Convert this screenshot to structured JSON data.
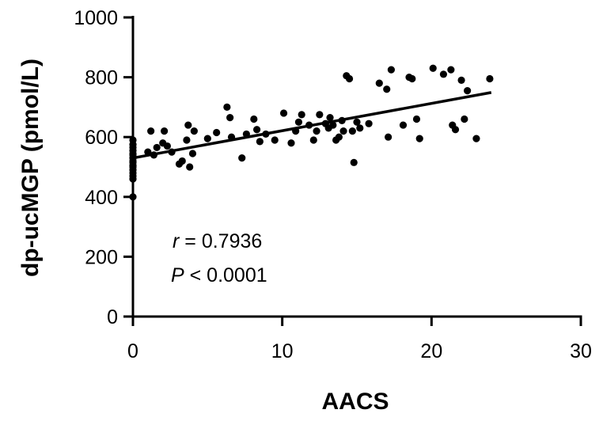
{
  "chart_data": {
    "type": "scatter",
    "xlabel": "AACS",
    "ylabel": "dp-ucMGP (pmol/L)",
    "xlim": [
      0,
      30
    ],
    "ylim": [
      0,
      1000
    ],
    "xticks": [
      "0",
      "10",
      "20",
      "30"
    ],
    "yticks": [
      "0",
      "200",
      "400",
      "600",
      "800",
      "1000"
    ],
    "grid": false,
    "annotation": {
      "r_symbol": "r",
      "r_text": " = 0.7936",
      "p_symbol": "P",
      "p_text": " < 0.0001"
    },
    "trendline": {
      "x": [
        0,
        24
      ],
      "y": [
        530,
        749
      ]
    },
    "points": [
      {
        "x": 0,
        "y": 400
      },
      {
        "x": 0,
        "y": 460
      },
      {
        "x": 0,
        "y": 470
      },
      {
        "x": 0,
        "y": 480
      },
      {
        "x": 0,
        "y": 490
      },
      {
        "x": 0,
        "y": 500
      },
      {
        "x": 0,
        "y": 505
      },
      {
        "x": 0,
        "y": 515
      },
      {
        "x": 0,
        "y": 520
      },
      {
        "x": 0,
        "y": 530
      },
      {
        "x": 0,
        "y": 540
      },
      {
        "x": 0,
        "y": 545
      },
      {
        "x": 0,
        "y": 555
      },
      {
        "x": 0,
        "y": 565
      },
      {
        "x": 0,
        "y": 575
      },
      {
        "x": 0,
        "y": 590
      },
      {
        "x": 1.0,
        "y": 550
      },
      {
        "x": 1.2,
        "y": 620
      },
      {
        "x": 1.4,
        "y": 540
      },
      {
        "x": 1.6,
        "y": 565
      },
      {
        "x": 2.0,
        "y": 580
      },
      {
        "x": 2.1,
        "y": 620
      },
      {
        "x": 2.3,
        "y": 570
      },
      {
        "x": 2.6,
        "y": 550
      },
      {
        "x": 3.1,
        "y": 510
      },
      {
        "x": 3.3,
        "y": 520
      },
      {
        "x": 3.6,
        "y": 590
      },
      {
        "x": 3.7,
        "y": 640
      },
      {
        "x": 3.8,
        "y": 500
      },
      {
        "x": 4.0,
        "y": 545
      },
      {
        "x": 4.1,
        "y": 620
      },
      {
        "x": 5.0,
        "y": 595
      },
      {
        "x": 5.6,
        "y": 615
      },
      {
        "x": 6.3,
        "y": 700
      },
      {
        "x": 6.5,
        "y": 665
      },
      {
        "x": 6.6,
        "y": 600
      },
      {
        "x": 7.3,
        "y": 530
      },
      {
        "x": 7.6,
        "y": 610
      },
      {
        "x": 8.1,
        "y": 660
      },
      {
        "x": 8.3,
        "y": 625
      },
      {
        "x": 8.5,
        "y": 585
      },
      {
        "x": 8.9,
        "y": 610
      },
      {
        "x": 9.5,
        "y": 590
      },
      {
        "x": 10.1,
        "y": 680
      },
      {
        "x": 10.6,
        "y": 580
      },
      {
        "x": 10.9,
        "y": 620
      },
      {
        "x": 11.1,
        "y": 650
      },
      {
        "x": 11.3,
        "y": 675
      },
      {
        "x": 11.8,
        "y": 640
      },
      {
        "x": 12.1,
        "y": 590
      },
      {
        "x": 12.3,
        "y": 620
      },
      {
        "x": 12.5,
        "y": 675
      },
      {
        "x": 12.9,
        "y": 645
      },
      {
        "x": 13.1,
        "y": 630
      },
      {
        "x": 13.2,
        "y": 665
      },
      {
        "x": 13.4,
        "y": 640
      },
      {
        "x": 13.6,
        "y": 590
      },
      {
        "x": 13.8,
        "y": 600
      },
      {
        "x": 14.0,
        "y": 655
      },
      {
        "x": 14.1,
        "y": 620
      },
      {
        "x": 14.3,
        "y": 805
      },
      {
        "x": 14.5,
        "y": 795
      },
      {
        "x": 14.7,
        "y": 620
      },
      {
        "x": 14.8,
        "y": 515
      },
      {
        "x": 15.0,
        "y": 650
      },
      {
        "x": 15.2,
        "y": 630
      },
      {
        "x": 15.8,
        "y": 645
      },
      {
        "x": 16.5,
        "y": 780
      },
      {
        "x": 17.0,
        "y": 760
      },
      {
        "x": 17.1,
        "y": 600
      },
      {
        "x": 17.3,
        "y": 825
      },
      {
        "x": 18.1,
        "y": 640
      },
      {
        "x": 18.5,
        "y": 800
      },
      {
        "x": 18.7,
        "y": 795
      },
      {
        "x": 19.0,
        "y": 660
      },
      {
        "x": 19.2,
        "y": 595
      },
      {
        "x": 20.1,
        "y": 830
      },
      {
        "x": 20.8,
        "y": 810
      },
      {
        "x": 21.3,
        "y": 825
      },
      {
        "x": 21.4,
        "y": 640
      },
      {
        "x": 21.6,
        "y": 625
      },
      {
        "x": 22.0,
        "y": 790
      },
      {
        "x": 22.2,
        "y": 660
      },
      {
        "x": 22.4,
        "y": 755
      },
      {
        "x": 23.0,
        "y": 595
      },
      {
        "x": 23.9,
        "y": 795
      }
    ]
  }
}
